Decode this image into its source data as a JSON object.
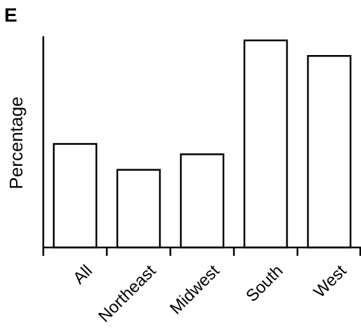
{
  "panel_label": "E",
  "chart_data": {
    "type": "bar",
    "categories": [
      "All",
      "Northeast",
      "Midwest",
      "South",
      "West"
    ],
    "values": [
      50,
      37.5,
      45,
      100,
      92.5
    ],
    "title": "",
    "xlabel": "",
    "ylabel": "Percentage",
    "ylim": [
      0,
      102
    ],
    "yticks_shown": false,
    "grid": false,
    "legend": "none",
    "bar_fill": "#ffffff",
    "bar_stroke": "#000000"
  }
}
